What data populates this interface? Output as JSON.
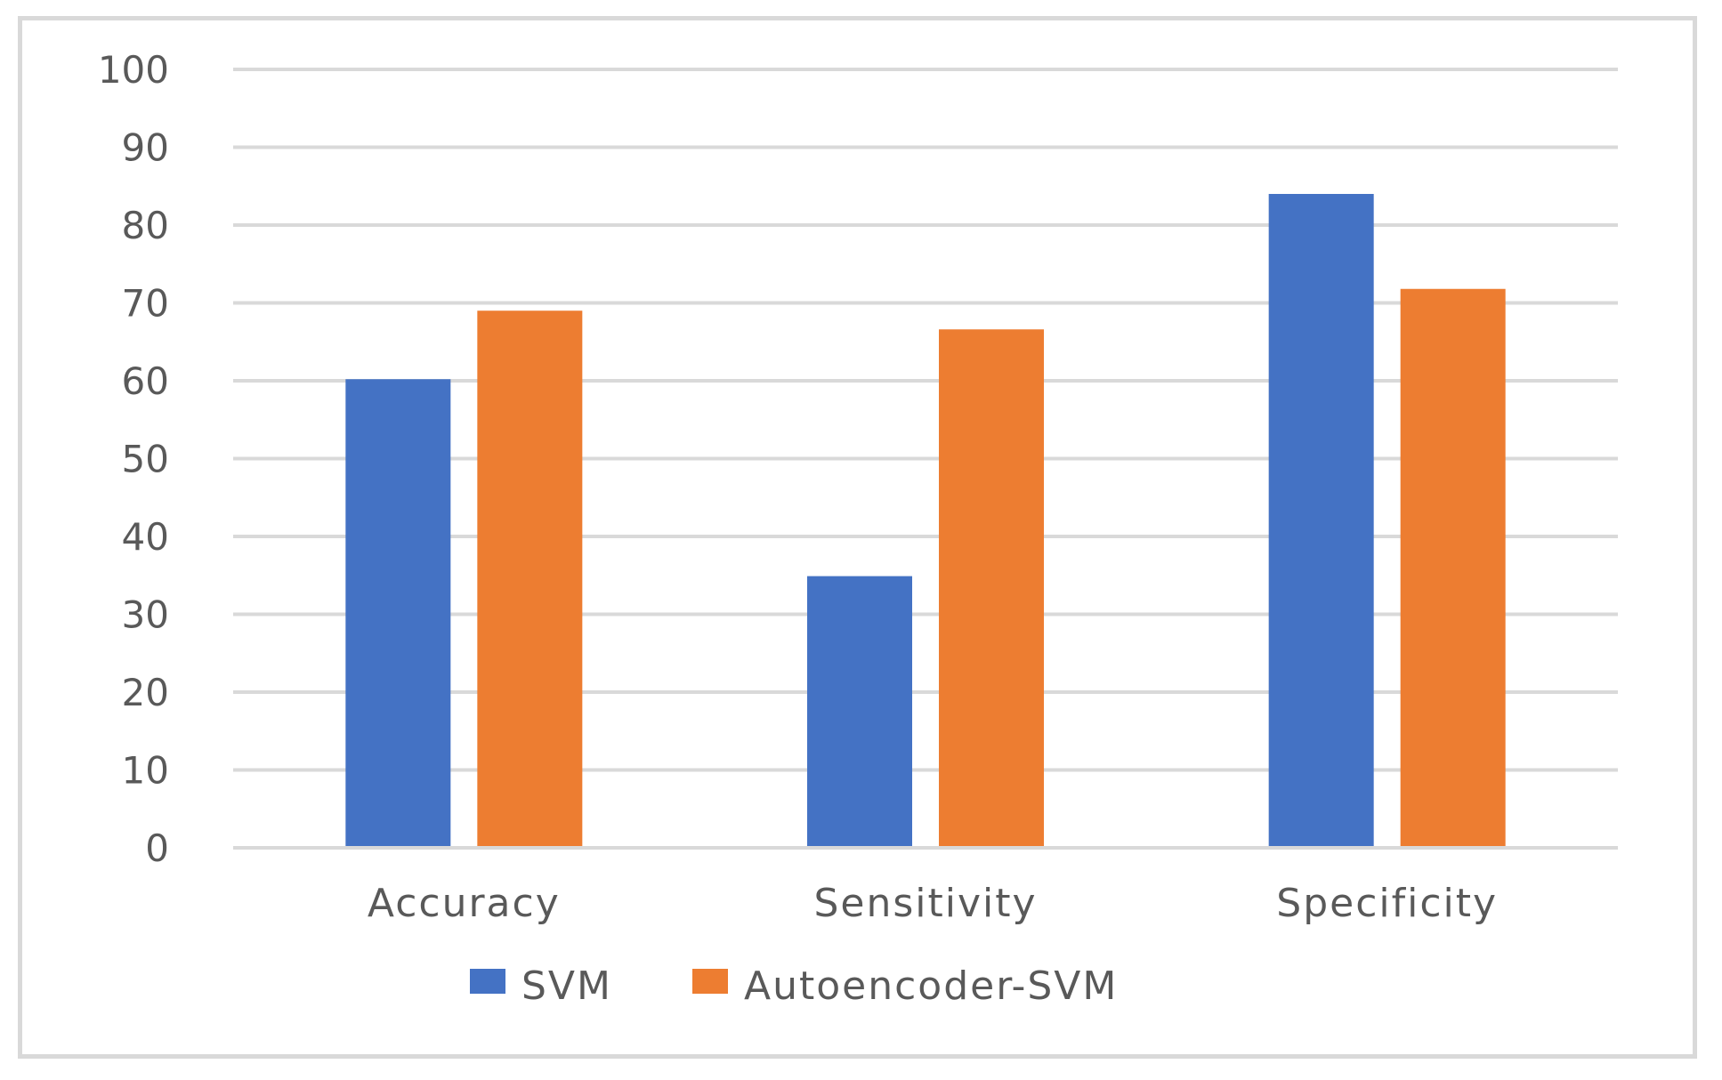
{
  "chart_data": {
    "type": "bar",
    "title": "",
    "xlabel": "",
    "ylabel": "",
    "categories": [
      "Accuracy",
      "Sensitivity",
      "Specificity"
    ],
    "series": [
      {
        "name": "SVM",
        "color": "#4472c4",
        "values": [
          60.2,
          34.9,
          84.0
        ]
      },
      {
        "name": "Autoencoder-SVM",
        "color": "#ed7d31",
        "values": [
          69.0,
          66.6,
          71.8
        ]
      }
    ],
    "ylim": [
      0,
      100
    ],
    "yticks": [
      0,
      10,
      20,
      30,
      40,
      50,
      60,
      70,
      80,
      90,
      100
    ],
    "grid": true,
    "legend_position": "bottom"
  }
}
